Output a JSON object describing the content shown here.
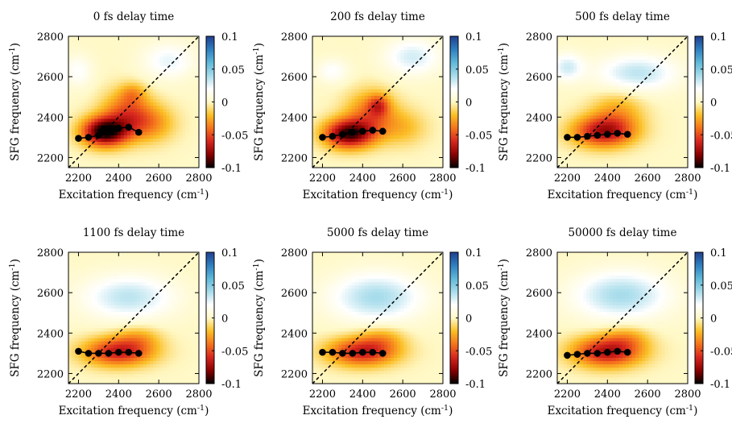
{
  "figure": {
    "colorbar": {
      "ticks": [
        0.1,
        0.05,
        0,
        -0.05,
        -0.1
      ],
      "labels": [
        "0.1",
        "0.05",
        "0",
        "-0.05",
        "-0.1"
      ],
      "colormap": [
        "#000000",
        "#8b0000",
        "#d7261e",
        "#f5731c",
        "#fbbf26",
        "#fff9c8",
        "#ffffff",
        "#a7dceb",
        "#5fb8d9",
        "#2f7fc0",
        "#1f3f8f"
      ]
    },
    "diagonal_color": "#000000",
    "marker_color": "#000000"
  },
  "chart_data": [
    {
      "type": "heatmap",
      "title": "0 fs delay time",
      "xlabel": "Excitation frequency (cm",
      "ylabel": "SFG frequency (cm",
      "label_superscript": "-1",
      "label_suffix": ")",
      "xlim": [
        2150,
        2800
      ],
      "ylim": [
        2150,
        2800
      ],
      "xticks": [
        2200,
        2400,
        2600,
        2800
      ],
      "yticks": [
        2200,
        2400,
        2600,
        2800
      ],
      "zlim": [
        -0.1,
        0.1
      ],
      "diagonal": true,
      "peak_line": {
        "x": [
          2200,
          2250,
          2300,
          2350,
          2400,
          2450,
          2500
        ],
        "y": [
          2295,
          2300,
          2310,
          2325,
          2345,
          2350,
          2325
        ]
      },
      "features": [
        {
          "x": 2330,
          "y": 2330,
          "sx": 110,
          "sy": 70,
          "amp": -0.1
        },
        {
          "x": 2440,
          "y": 2420,
          "sx": 120,
          "sy": 110,
          "amp": -0.045
        },
        {
          "x": 2560,
          "y": 2370,
          "sx": 120,
          "sy": 90,
          "amp": -0.03
        },
        {
          "x": 2470,
          "y": 2520,
          "sx": 60,
          "sy": 50,
          "amp": -0.02
        },
        {
          "x": 2650,
          "y": 2680,
          "sx": 130,
          "sy": 90,
          "amp": 0.025
        },
        {
          "x": 2200,
          "y": 2630,
          "sx": 70,
          "sy": 80,
          "amp": 0.02
        }
      ]
    },
    {
      "type": "heatmap",
      "title": "200 fs delay time",
      "xlabel": "Excitation frequency (cm",
      "ylabel": "SFG frequency (cm",
      "label_superscript": "-1",
      "label_suffix": ")",
      "xlim": [
        2150,
        2800
      ],
      "ylim": [
        2150,
        2800
      ],
      "xticks": [
        2200,
        2400,
        2600,
        2800
      ],
      "yticks": [
        2200,
        2400,
        2600,
        2800
      ],
      "zlim": [
        -0.1,
        0.1
      ],
      "diagonal": true,
      "peak_line": {
        "x": [
          2200,
          2250,
          2300,
          2350,
          2400,
          2450,
          2500
        ],
        "y": [
          2300,
          2305,
          2315,
          2325,
          2330,
          2335,
          2330
        ]
      },
      "features": [
        {
          "x": 2330,
          "y": 2320,
          "sx": 120,
          "sy": 70,
          "amp": -0.09
        },
        {
          "x": 2440,
          "y": 2420,
          "sx": 120,
          "sy": 110,
          "amp": -0.04
        },
        {
          "x": 2480,
          "y": 2460,
          "sx": 50,
          "sy": 50,
          "amp": -0.035
        },
        {
          "x": 2600,
          "y": 2350,
          "sx": 120,
          "sy": 90,
          "amp": -0.02
        },
        {
          "x": 2650,
          "y": 2700,
          "sx": 140,
          "sy": 90,
          "amp": 0.03
        },
        {
          "x": 2250,
          "y": 2630,
          "sx": 80,
          "sy": 60,
          "amp": 0.02
        }
      ]
    },
    {
      "type": "heatmap",
      "title": "500 fs delay time",
      "xlabel": "Excitation frequency (cm",
      "ylabel": "SFG frequency (cm",
      "label_superscript": "-1",
      "label_suffix": ")",
      "xlim": [
        2150,
        2800
      ],
      "ylim": [
        2150,
        2800
      ],
      "xticks": [
        2200,
        2400,
        2600,
        2800
      ],
      "yticks": [
        2200,
        2400,
        2600,
        2800
      ],
      "zlim": [
        -0.1,
        0.1
      ],
      "diagonal": true,
      "peak_line": {
        "x": [
          2200,
          2250,
          2300,
          2350,
          2400,
          2450,
          2500
        ],
        "y": [
          2300,
          2300,
          2305,
          2310,
          2315,
          2320,
          2315
        ]
      },
      "features": [
        {
          "x": 2380,
          "y": 2330,
          "sx": 150,
          "sy": 75,
          "amp": -0.07
        },
        {
          "x": 2450,
          "y": 2430,
          "sx": 130,
          "sy": 100,
          "amp": -0.025
        },
        {
          "x": 2550,
          "y": 2620,
          "sx": 200,
          "sy": 90,
          "amp": 0.035
        },
        {
          "x": 2200,
          "y": 2650,
          "sx": 80,
          "sy": 70,
          "amp": 0.03
        }
      ]
    },
    {
      "type": "heatmap",
      "title": "1100 fs delay time",
      "xlabel": "Excitation frequency (cm",
      "ylabel": "SFG frequency (cm",
      "label_superscript": "-1",
      "label_suffix": ")",
      "xlim": [
        2150,
        2800
      ],
      "ylim": [
        2150,
        2800
      ],
      "xticks": [
        2200,
        2400,
        2600,
        2800
      ],
      "yticks": [
        2200,
        2400,
        2600,
        2800
      ],
      "zlim": [
        -0.1,
        0.1
      ],
      "diagonal": true,
      "peak_line": {
        "x": [
          2200,
          2250,
          2300,
          2350,
          2400,
          2450,
          2500
        ],
        "y": [
          2310,
          2300,
          2300,
          2300,
          2305,
          2305,
          2300
        ]
      },
      "features": [
        {
          "x": 2400,
          "y": 2310,
          "sx": 170,
          "sy": 70,
          "amp": -0.065
        },
        {
          "x": 2500,
          "y": 2380,
          "sx": 110,
          "sy": 60,
          "amp": -0.02
        },
        {
          "x": 2450,
          "y": 2580,
          "sx": 230,
          "sy": 110,
          "amp": 0.035
        }
      ]
    },
    {
      "type": "heatmap",
      "title": "5000 fs delay time",
      "xlabel": "Excitation frequency (cm",
      "ylabel": "SFG frequency (cm",
      "label_superscript": "-1",
      "label_suffix": ")",
      "xlim": [
        2150,
        2800
      ],
      "ylim": [
        2150,
        2800
      ],
      "xticks": [
        2200,
        2400,
        2600,
        2800
      ],
      "yticks": [
        2200,
        2400,
        2600,
        2800
      ],
      "zlim": [
        -0.1,
        0.1
      ],
      "diagonal": true,
      "peak_line": {
        "x": [
          2200,
          2250,
          2300,
          2350,
          2400,
          2450,
          2500
        ],
        "y": [
          2305,
          2305,
          2300,
          2300,
          2305,
          2305,
          2300
        ]
      },
      "features": [
        {
          "x": 2400,
          "y": 2310,
          "sx": 170,
          "sy": 70,
          "amp": -0.065
        },
        {
          "x": 2500,
          "y": 2380,
          "sx": 110,
          "sy": 60,
          "amp": -0.02
        },
        {
          "x": 2470,
          "y": 2580,
          "sx": 230,
          "sy": 120,
          "amp": 0.04
        }
      ]
    },
    {
      "type": "heatmap",
      "title": "50000 fs delay time",
      "xlabel": "Excitation frequency (cm",
      "ylabel": "SFG frequency (cm",
      "label_superscript": "-1",
      "label_suffix": ")",
      "xlim": [
        2150,
        2800
      ],
      "ylim": [
        2150,
        2800
      ],
      "xticks": [
        2200,
        2400,
        2600,
        2800
      ],
      "yticks": [
        2200,
        2400,
        2600,
        2800
      ],
      "zlim": [
        -0.1,
        0.1
      ],
      "diagonal": true,
      "peak_line": {
        "x": [
          2200,
          2250,
          2300,
          2350,
          2400,
          2450,
          2500
        ],
        "y": [
          2290,
          2295,
          2300,
          2300,
          2305,
          2310,
          2305
        ]
      },
      "features": [
        {
          "x": 2400,
          "y": 2310,
          "sx": 170,
          "sy": 75,
          "amp": -0.07
        },
        {
          "x": 2500,
          "y": 2380,
          "sx": 110,
          "sy": 60,
          "amp": -0.02
        },
        {
          "x": 2470,
          "y": 2590,
          "sx": 240,
          "sy": 120,
          "amp": 0.04
        }
      ]
    }
  ]
}
